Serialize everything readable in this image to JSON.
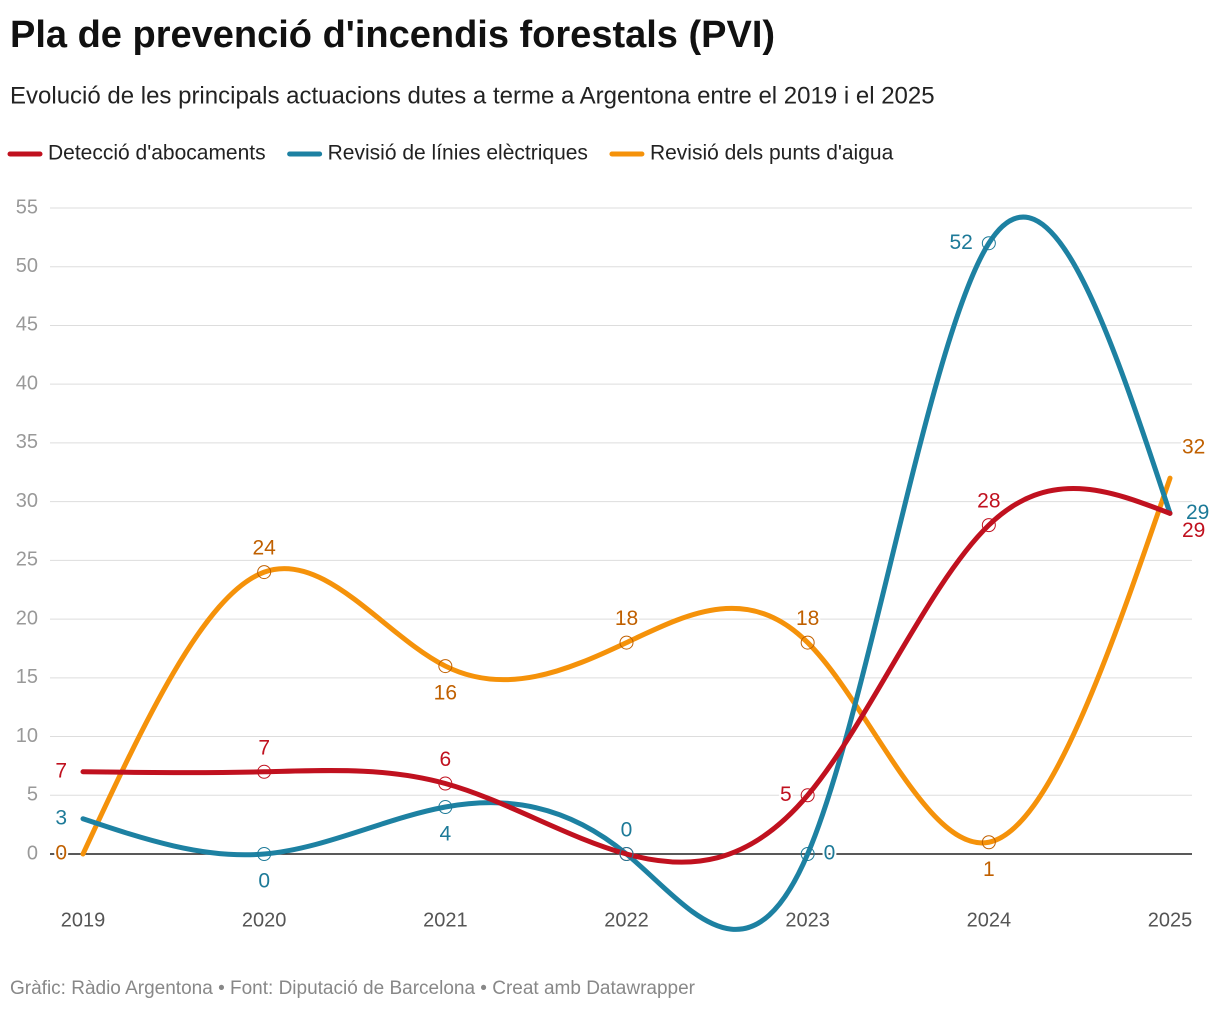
{
  "chart_data": {
    "type": "line",
    "title": "Pla de prevenció d'incendis forestals  (PVI)",
    "subtitle": "Evolució de les principals actuacions dutes a terme a Argentona entre el 2019 i el 2025",
    "footer": "Gràfic: Ràdio Argentona • Font: Diputació de Barcelona • Creat amb Datawrapper",
    "categories": [
      "2019",
      "2020",
      "2021",
      "2022",
      "2023",
      "2024",
      "2025"
    ],
    "series": [
      {
        "name": "Detecció d'abocaments",
        "color": "#c0111f",
        "label_color": "#c0111f",
        "values": [
          7,
          7,
          6,
          0,
          5,
          28,
          29
        ]
      },
      {
        "name": "Revisió de línies elèctriques",
        "color": "#1d81a2",
        "label_color": "#1d7a98",
        "values": [
          3,
          0,
          4,
          0,
          0,
          52,
          29
        ]
      },
      {
        "name": "Revisió dels punts d'aigua",
        "color": "#f5920a",
        "label_color": "#c06000",
        "values": [
          0,
          24,
          16,
          18,
          18,
          1,
          32
        ]
      }
    ],
    "ylim": [
      0,
      55
    ],
    "yticks": [
      0,
      5,
      10,
      15,
      20,
      25,
      30,
      35,
      40,
      45,
      50,
      55
    ],
    "grid": true,
    "curve": "natural"
  }
}
